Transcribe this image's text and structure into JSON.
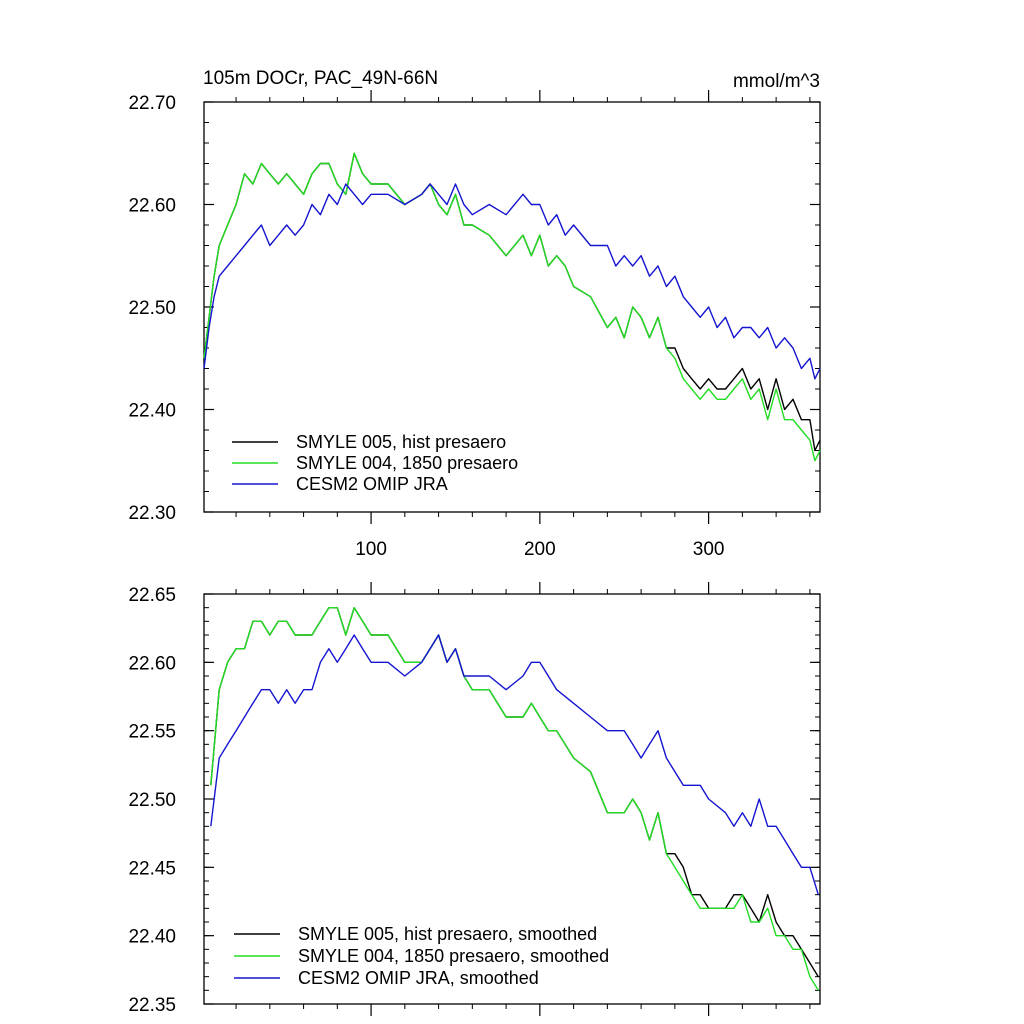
{
  "chart_data": [
    {
      "type": "line",
      "title": "105m DOCr, PAC_49N-66N",
      "units": "mmol/m^3",
      "xlim": [
        1,
        366
      ],
      "ylim": [
        22.3,
        22.7
      ],
      "x_ticks": [
        100,
        200,
        300
      ],
      "x_tick_labels": [
        "100",
        "200",
        "300"
      ],
      "y_ticks": [
        22.3,
        22.4,
        22.5,
        22.6,
        22.7
      ],
      "y_tick_labels": [
        "22.30",
        "22.40",
        "22.50",
        "22.60",
        "22.70"
      ],
      "legend": "bottom-left",
      "series": [
        {
          "name": "SMYLE 005, hist presaero",
          "color": "#000000",
          "x": [
            1,
            4,
            7,
            10,
            15,
            20,
            25,
            30,
            35,
            40,
            45,
            50,
            55,
            60,
            65,
            70,
            75,
            80,
            85,
            90,
            95,
            100,
            110,
            120,
            130,
            135,
            140,
            145,
            150,
            155,
            160,
            170,
            180,
            190,
            195,
            200,
            205,
            210,
            215,
            220,
            230,
            240,
            245,
            250,
            255,
            260,
            265,
            270,
            275,
            280,
            285,
            290,
            295,
            300,
            305,
            310,
            315,
            320,
            325,
            330,
            335,
            340,
            345,
            350,
            355,
            360,
            363,
            366
          ],
          "values": [
            22.45,
            22.49,
            22.53,
            22.56,
            22.58,
            22.6,
            22.63,
            22.62,
            22.64,
            22.63,
            22.62,
            22.63,
            22.62,
            22.61,
            22.63,
            22.64,
            22.64,
            22.62,
            22.61,
            22.65,
            22.63,
            22.62,
            22.62,
            22.6,
            22.61,
            22.62,
            22.6,
            22.59,
            22.61,
            22.58,
            22.58,
            22.57,
            22.55,
            22.57,
            22.55,
            22.57,
            22.54,
            22.55,
            22.54,
            22.52,
            22.51,
            22.48,
            22.49,
            22.47,
            22.5,
            22.49,
            22.47,
            22.49,
            22.46,
            22.46,
            22.44,
            22.43,
            22.42,
            22.43,
            22.42,
            22.42,
            22.43,
            22.44,
            22.42,
            22.43,
            22.4,
            22.43,
            22.4,
            22.41,
            22.39,
            22.39,
            22.36,
            22.37
          ]
        },
        {
          "name": "SMYLE 004, 1850 presaero",
          "color": "#22dd22",
          "x": [
            1,
            4,
            7,
            10,
            15,
            20,
            25,
            30,
            35,
            40,
            45,
            50,
            55,
            60,
            65,
            70,
            75,
            80,
            85,
            90,
            95,
            100,
            110,
            120,
            130,
            135,
            140,
            145,
            150,
            155,
            160,
            170,
            180,
            190,
            195,
            200,
            205,
            210,
            215,
            220,
            230,
            240,
            245,
            250,
            255,
            260,
            265,
            270,
            275,
            280,
            285,
            290,
            295,
            300,
            305,
            310,
            315,
            320,
            325,
            330,
            335,
            340,
            345,
            350,
            355,
            360,
            363,
            366
          ],
          "values": [
            22.45,
            22.49,
            22.53,
            22.56,
            22.58,
            22.6,
            22.63,
            22.62,
            22.64,
            22.63,
            22.62,
            22.63,
            22.62,
            22.61,
            22.63,
            22.64,
            22.64,
            22.62,
            22.61,
            22.65,
            22.63,
            22.62,
            22.62,
            22.6,
            22.61,
            22.62,
            22.6,
            22.59,
            22.61,
            22.58,
            22.58,
            22.57,
            22.55,
            22.57,
            22.55,
            22.57,
            22.54,
            22.55,
            22.54,
            22.52,
            22.51,
            22.48,
            22.49,
            22.47,
            22.5,
            22.49,
            22.47,
            22.49,
            22.46,
            22.45,
            22.43,
            22.42,
            22.41,
            22.42,
            22.41,
            22.41,
            22.42,
            22.43,
            22.41,
            22.42,
            22.39,
            22.42,
            22.39,
            22.39,
            22.38,
            22.37,
            22.35,
            22.36
          ]
        },
        {
          "name": "CESM2 OMIP JRA",
          "color": "#1515d0",
          "x": [
            1,
            4,
            7,
            10,
            15,
            20,
            25,
            30,
            35,
            40,
            45,
            50,
            55,
            60,
            65,
            70,
            75,
            80,
            85,
            90,
            95,
            100,
            110,
            120,
            130,
            135,
            140,
            145,
            150,
            155,
            160,
            170,
            180,
            190,
            195,
            200,
            205,
            210,
            215,
            220,
            230,
            240,
            245,
            250,
            255,
            260,
            265,
            270,
            275,
            280,
            285,
            290,
            295,
            300,
            305,
            310,
            315,
            320,
            325,
            330,
            335,
            340,
            345,
            350,
            355,
            360,
            363,
            366
          ],
          "values": [
            22.44,
            22.48,
            22.51,
            22.53,
            22.54,
            22.55,
            22.56,
            22.57,
            22.58,
            22.56,
            22.57,
            22.58,
            22.57,
            22.58,
            22.6,
            22.59,
            22.61,
            22.6,
            22.62,
            22.61,
            22.6,
            22.61,
            22.61,
            22.6,
            22.61,
            22.62,
            22.61,
            22.6,
            22.62,
            22.6,
            22.59,
            22.6,
            22.59,
            22.61,
            22.6,
            22.6,
            22.58,
            22.59,
            22.57,
            22.58,
            22.56,
            22.56,
            22.54,
            22.55,
            22.54,
            22.55,
            22.53,
            22.54,
            22.52,
            22.53,
            22.51,
            22.5,
            22.49,
            22.5,
            22.48,
            22.49,
            22.47,
            22.48,
            22.48,
            22.47,
            22.48,
            22.46,
            22.47,
            22.46,
            22.44,
            22.45,
            22.43,
            22.44
          ]
        }
      ]
    },
    {
      "type": "line",
      "xlim": [
        1,
        366
      ],
      "ylim": [
        22.35,
        22.65
      ],
      "x_ticks": [
        100,
        200,
        300
      ],
      "y_ticks": [
        22.35,
        22.4,
        22.45,
        22.5,
        22.55,
        22.6,
        22.65
      ],
      "y_tick_labels": [
        "22.35",
        "22.40",
        "22.45",
        "22.50",
        "22.55",
        "22.60",
        "22.65"
      ],
      "legend": "bottom-left",
      "series": [
        {
          "name": "SMYLE 005, hist presaero, smoothed",
          "color": "#000000",
          "x": [
            5,
            10,
            15,
            20,
            25,
            30,
            35,
            40,
            45,
            50,
            55,
            60,
            65,
            70,
            75,
            80,
            85,
            90,
            95,
            100,
            110,
            120,
            130,
            135,
            140,
            145,
            150,
            155,
            160,
            170,
            180,
            190,
            195,
            200,
            205,
            210,
            220,
            230,
            240,
            250,
            255,
            260,
            265,
            270,
            275,
            280,
            285,
            290,
            295,
            300,
            310,
            315,
            320,
            325,
            330,
            335,
            340,
            345,
            350,
            355,
            360,
            365
          ],
          "values": [
            22.51,
            22.58,
            22.6,
            22.61,
            22.61,
            22.63,
            22.63,
            22.62,
            22.63,
            22.63,
            22.62,
            22.62,
            22.62,
            22.63,
            22.64,
            22.64,
            22.62,
            22.64,
            22.63,
            22.62,
            22.62,
            22.6,
            22.6,
            22.61,
            22.62,
            22.6,
            22.61,
            22.59,
            22.58,
            22.58,
            22.56,
            22.56,
            22.57,
            22.56,
            22.55,
            22.55,
            22.53,
            22.52,
            22.49,
            22.49,
            22.5,
            22.49,
            22.47,
            22.49,
            22.46,
            22.46,
            22.45,
            22.43,
            22.43,
            22.42,
            22.42,
            22.43,
            22.43,
            22.42,
            22.41,
            22.43,
            22.41,
            22.4,
            22.4,
            22.39,
            22.38,
            22.37
          ]
        },
        {
          "name": "SMYLE 004, 1850 presaero, smoothed",
          "color": "#22dd22",
          "x": [
            5,
            10,
            15,
            20,
            25,
            30,
            35,
            40,
            45,
            50,
            55,
            60,
            65,
            70,
            75,
            80,
            85,
            90,
            95,
            100,
            110,
            120,
            130,
            135,
            140,
            145,
            150,
            155,
            160,
            170,
            180,
            190,
            195,
            200,
            205,
            210,
            220,
            230,
            240,
            250,
            255,
            260,
            265,
            270,
            275,
            280,
            285,
            290,
            295,
            300,
            310,
            315,
            320,
            325,
            330,
            335,
            340,
            345,
            350,
            355,
            360,
            365
          ],
          "values": [
            22.51,
            22.58,
            22.6,
            22.61,
            22.61,
            22.63,
            22.63,
            22.62,
            22.63,
            22.63,
            22.62,
            22.62,
            22.62,
            22.63,
            22.64,
            22.64,
            22.62,
            22.64,
            22.63,
            22.62,
            22.62,
            22.6,
            22.6,
            22.61,
            22.62,
            22.6,
            22.61,
            22.59,
            22.58,
            22.58,
            22.56,
            22.56,
            22.57,
            22.56,
            22.55,
            22.55,
            22.53,
            22.52,
            22.49,
            22.49,
            22.5,
            22.49,
            22.47,
            22.49,
            22.46,
            22.45,
            22.44,
            22.43,
            22.42,
            22.42,
            22.42,
            22.42,
            22.43,
            22.41,
            22.41,
            22.42,
            22.4,
            22.4,
            22.39,
            22.39,
            22.37,
            22.36
          ]
        },
        {
          "name": "CESM2 OMIP JRA, smoothed",
          "color": "#1515d0",
          "x": [
            5,
            10,
            15,
            20,
            25,
            30,
            35,
            40,
            45,
            50,
            55,
            60,
            65,
            70,
            75,
            80,
            85,
            90,
            95,
            100,
            110,
            120,
            130,
            135,
            140,
            145,
            150,
            155,
            160,
            170,
            180,
            190,
            195,
            200,
            205,
            210,
            220,
            230,
            240,
            250,
            255,
            260,
            265,
            270,
            275,
            280,
            285,
            290,
            295,
            300,
            310,
            315,
            320,
            325,
            330,
            335,
            340,
            345,
            350,
            355,
            360,
            365
          ],
          "values": [
            22.48,
            22.53,
            22.54,
            22.55,
            22.56,
            22.57,
            22.58,
            22.58,
            22.57,
            22.58,
            22.57,
            22.58,
            22.58,
            22.6,
            22.61,
            22.6,
            22.61,
            22.62,
            22.61,
            22.6,
            22.6,
            22.59,
            22.6,
            22.61,
            22.62,
            22.6,
            22.61,
            22.59,
            22.59,
            22.59,
            22.58,
            22.59,
            22.6,
            22.6,
            22.59,
            22.58,
            22.57,
            22.56,
            22.55,
            22.55,
            22.54,
            22.53,
            22.54,
            22.55,
            22.53,
            22.52,
            22.51,
            22.51,
            22.51,
            22.5,
            22.49,
            22.48,
            22.49,
            22.48,
            22.5,
            22.48,
            22.48,
            22.47,
            22.46,
            22.45,
            22.45,
            22.43
          ]
        }
      ]
    }
  ]
}
